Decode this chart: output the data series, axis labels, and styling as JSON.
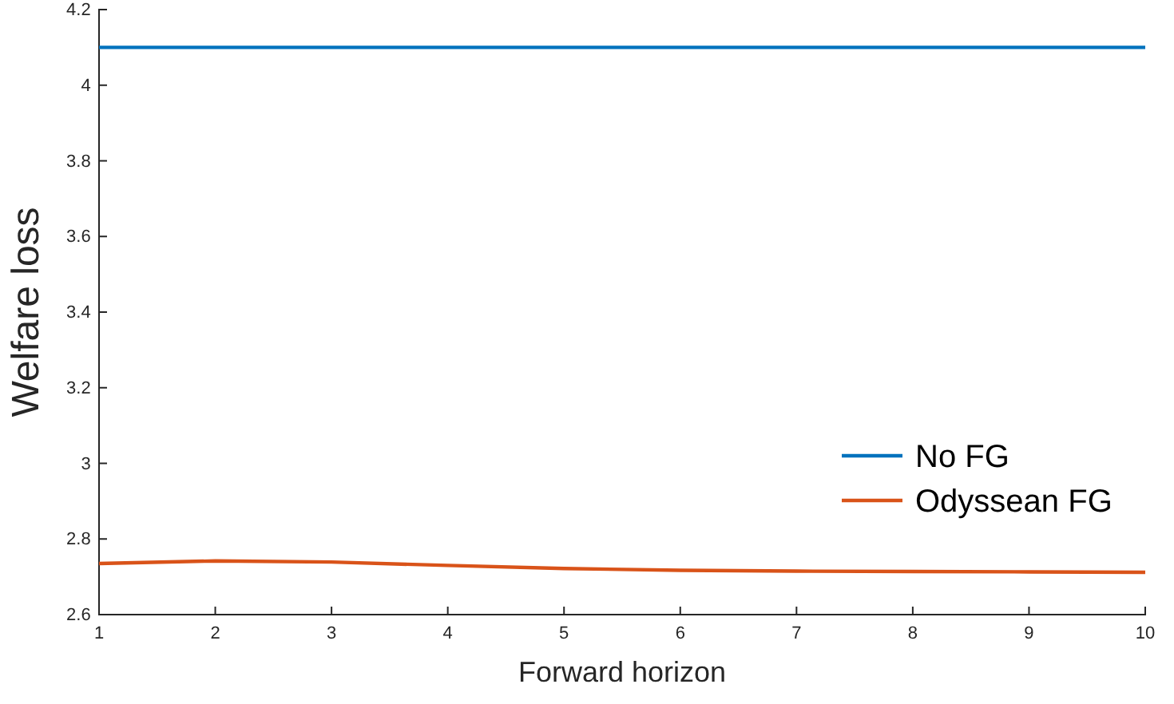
{
  "chart_data": {
    "type": "line",
    "xlabel": "Forward horizon",
    "ylabel": "Welfare loss",
    "x": [
      1,
      2,
      3,
      4,
      5,
      6,
      7,
      8,
      9,
      10
    ],
    "series": [
      {
        "name": "No FG",
        "color": "#0072bd",
        "values": [
          4.1,
          4.1,
          4.1,
          4.1,
          4.1,
          4.1,
          4.1,
          4.1,
          4.1,
          4.1
        ]
      },
      {
        "name": "Odyssean FG",
        "color": "#d95319",
        "values": [
          2.735,
          2.742,
          2.739,
          2.73,
          2.722,
          2.717,
          2.715,
          2.714,
          2.713,
          2.712
        ]
      }
    ],
    "xlim": [
      1,
      10
    ],
    "xticks": [
      1,
      2,
      3,
      4,
      5,
      6,
      7,
      8,
      9,
      10
    ],
    "ylim": [
      2.6,
      4.2
    ],
    "yticks": [
      2.6,
      2.8,
      3,
      3.2,
      3.4,
      3.6,
      3.8,
      4,
      4.2
    ],
    "legend": "right",
    "marker": "none",
    "line_style": "solid"
  }
}
